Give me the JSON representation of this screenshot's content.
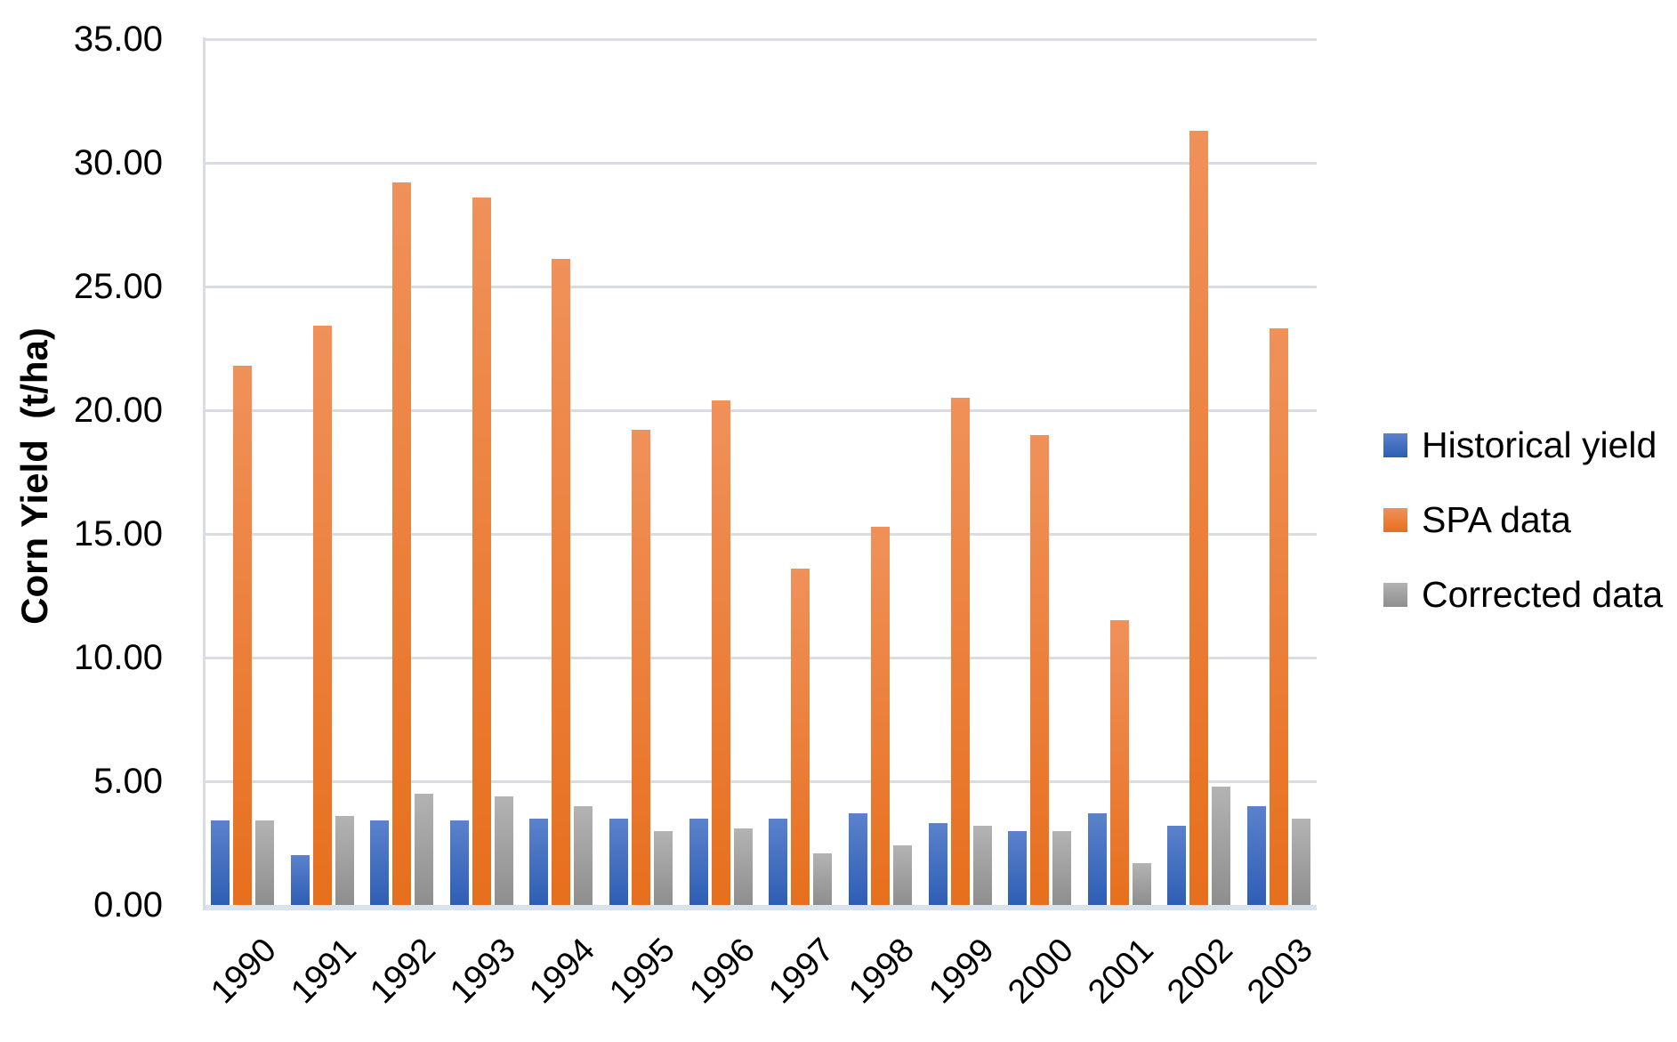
{
  "chart_data": {
    "type": "bar",
    "title": "",
    "xlabel": "",
    "ylabel": "Corn Yield  (t/ha)",
    "ylim": [
      0,
      35
    ],
    "ytick_step": 5,
    "ytick_labels": [
      "0.00",
      "5.00",
      "10.00",
      "15.00",
      "20.00",
      "25.00",
      "30.00",
      "35.00"
    ],
    "grid": true,
    "legend_position": "right",
    "categories": [
      "1990",
      "1991",
      "1992",
      "1993",
      "1994",
      "1995",
      "1996",
      "1997",
      "1998",
      "1999",
      "2000",
      "2001",
      "2002",
      "2003"
    ],
    "series": [
      {
        "name": "Historical yield",
        "color_top": "#5b82cc",
        "color_bottom": "#2e5eb4",
        "values": [
          3.4,
          2.0,
          3.4,
          3.4,
          3.5,
          3.5,
          3.5,
          3.5,
          3.7,
          3.3,
          3.0,
          3.7,
          3.2,
          4.0
        ]
      },
      {
        "name": "SPA data",
        "color_top": "#f0915a",
        "color_bottom": "#e76f1d",
        "values": [
          21.8,
          23.4,
          29.2,
          28.6,
          26.1,
          19.2,
          20.4,
          13.6,
          15.3,
          20.5,
          19.0,
          11.5,
          31.3,
          23.3
        ]
      },
      {
        "name": "Corrected data",
        "color_top": "#b3b3b3",
        "color_bottom": "#8e8e8e",
        "values": [
          3.4,
          3.6,
          4.5,
          4.4,
          4.0,
          3.0,
          3.1,
          2.1,
          2.4,
          3.2,
          3.0,
          1.7,
          4.8,
          3.5
        ]
      }
    ],
    "colors": {
      "gridline": "#d9dde3",
      "axis_band": "#dae2ed",
      "text": "#000000",
      "background": "#ffffff"
    }
  }
}
